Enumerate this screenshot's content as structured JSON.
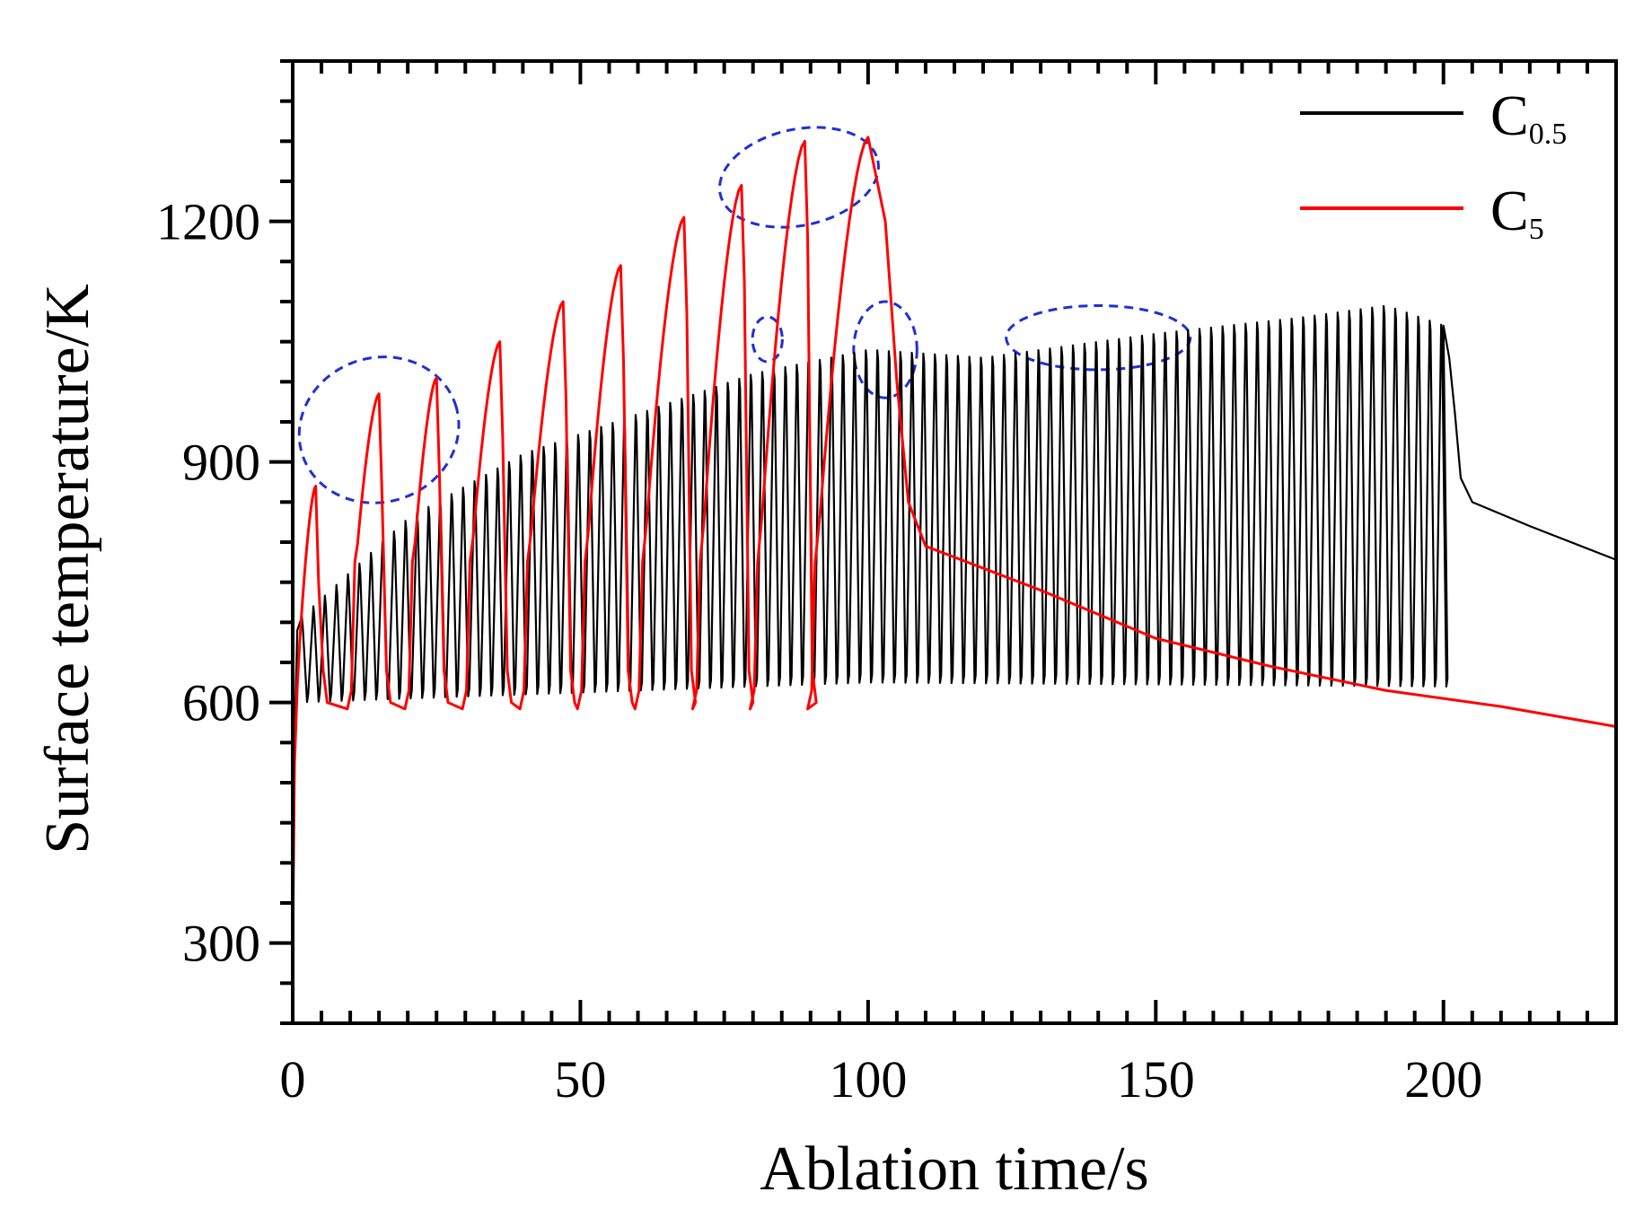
{
  "chart_data": {
    "type": "line",
    "xlabel": "Ablation time/s",
    "ylabel": "Surface temperature/K",
    "xlim": [
      0,
      230
    ],
    "ylim": [
      200,
      1400
    ],
    "xticks": [
      0,
      50,
      100,
      150,
      200
    ],
    "yticks": [
      300,
      600,
      900,
      1200
    ],
    "grid": false,
    "legend_position": "top-right",
    "series": [
      {
        "name": "C0.5",
        "name_main": "C",
        "name_sub": "0.5",
        "color": "#000000",
        "pulse_period_s": 2,
        "pulse_train_end_s": 200,
        "peaks": [
          [
            0.5,
            700
          ],
          [
            20,
            830
          ],
          [
            40,
            910
          ],
          [
            60,
            960
          ],
          [
            80,
            1010
          ],
          [
            100,
            1040
          ],
          [
            120,
            1030
          ],
          [
            150,
            1060
          ],
          [
            175,
            1080
          ],
          [
            190,
            1095
          ],
          [
            200,
            1070
          ]
        ],
        "troughs": [
          [
            0,
            600
          ],
          [
            100,
            625
          ],
          [
            200,
            620
          ]
        ],
        "cooldown": [
          [
            200,
            1070
          ],
          [
            201,
            1030
          ],
          [
            202,
            960
          ],
          [
            203,
            880
          ],
          [
            205,
            850
          ],
          [
            215,
            820
          ],
          [
            230,
            778
          ]
        ]
      },
      {
        "name": "C5",
        "name_main": "C",
        "name_sub": "5",
        "color": "#ff0000",
        "pulses": [
          {
            "start": 0,
            "peak": 4,
            "peak_value": 870
          },
          {
            "start": 10,
            "peak": 15,
            "peak_value": 985
          },
          {
            "start": 20,
            "peak": 25,
            "peak_value": 1005
          },
          {
            "start": 30,
            "peak": 36,
            "peak_value": 1050
          },
          {
            "start": 40,
            "peak": 47,
            "peak_value": 1100
          },
          {
            "start": 50,
            "peak": 57,
            "peak_value": 1145
          },
          {
            "start": 60,
            "peak": 68,
            "peak_value": 1205
          },
          {
            "start": 70,
            "peak": 78,
            "peak_value": 1245
          },
          {
            "start": 80,
            "peak": 89,
            "peak_value": 1300
          },
          {
            "start": 90,
            "peak": 100,
            "peak_value": 1305
          }
        ],
        "baseline": 595,
        "cooldown": [
          [
            100,
            1305
          ],
          [
            103,
            1200
          ],
          [
            105,
            1000
          ],
          [
            107,
            850
          ],
          [
            110,
            795
          ],
          [
            130,
            740
          ],
          [
            150,
            680
          ],
          [
            170,
            645
          ],
          [
            190,
            615
          ],
          [
            210,
            595
          ],
          [
            230,
            570
          ]
        ]
      }
    ]
  }
}
